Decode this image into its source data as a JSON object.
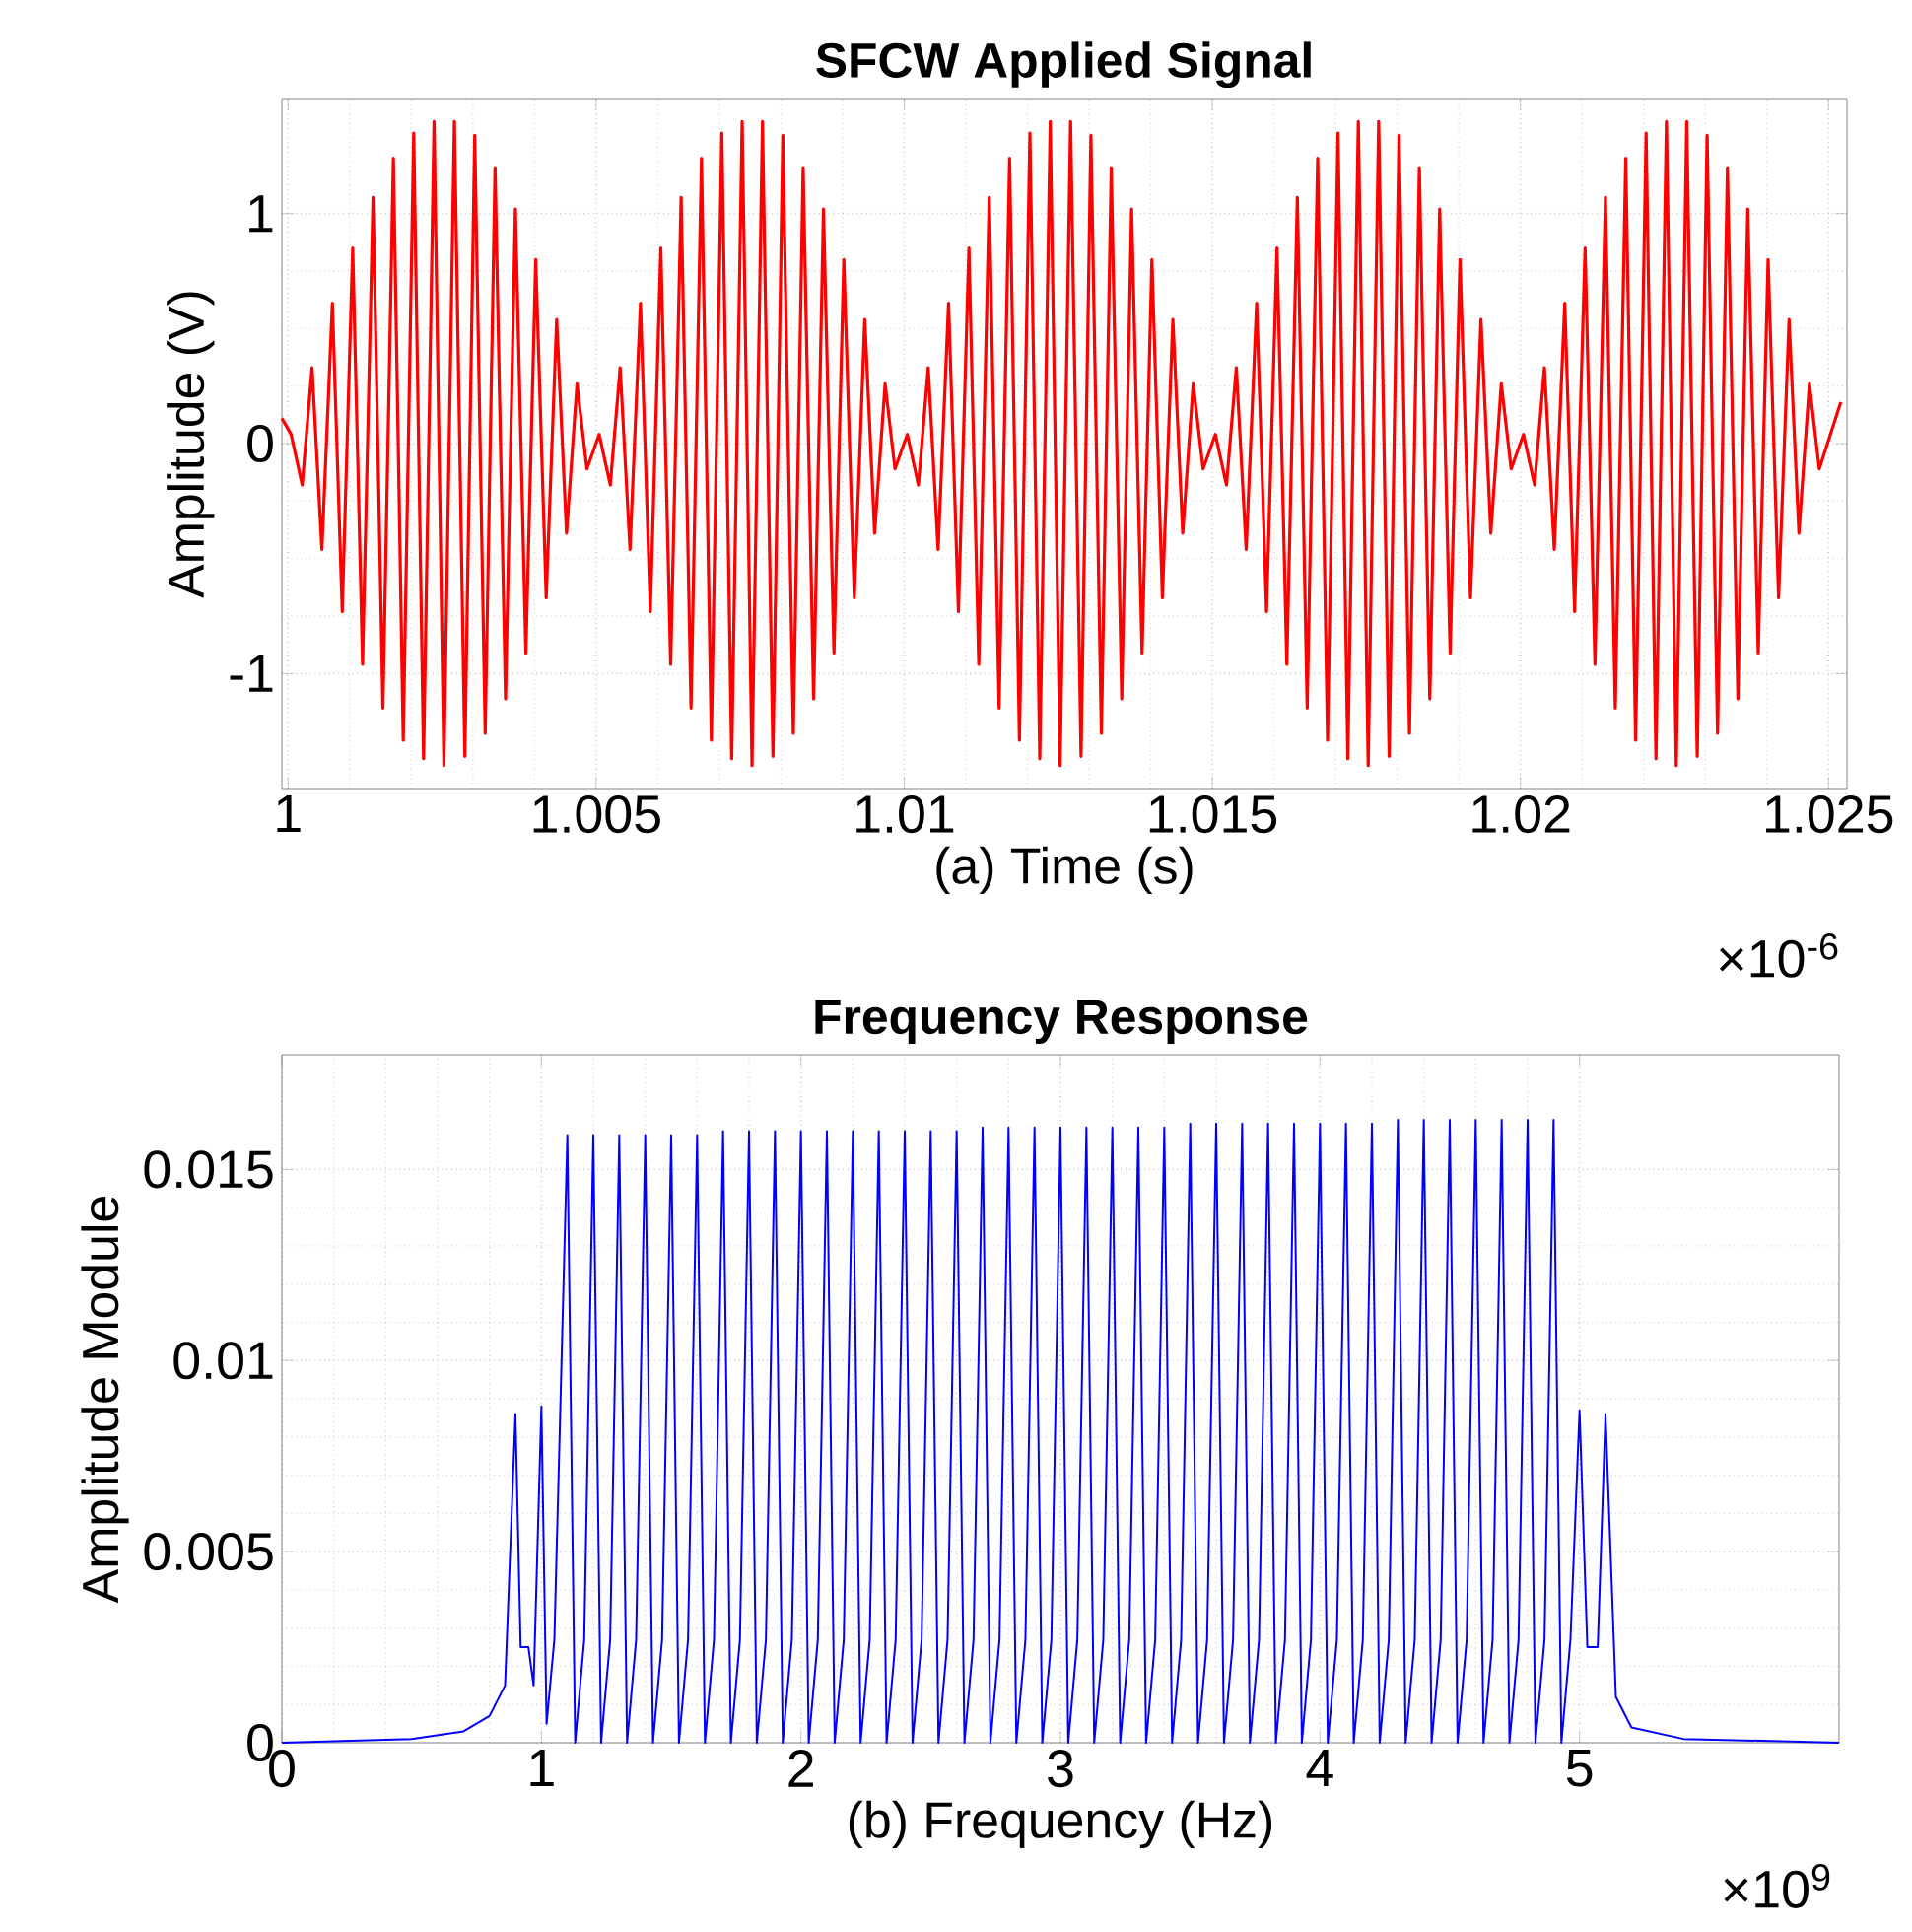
{
  "chart_data": [
    {
      "type": "line",
      "title": "SFCW Applied Signal",
      "xlabel": "(a) Time (s)",
      "ylabel": "Amplitude (V)",
      "annotations": [
        "×10$^{-6}$"
      ],
      "xlim": [
        0.9999,
        1.0253
      ],
      "ylim": [
        -1.5,
        1.5
      ],
      "xticks": [
        1,
        1.005,
        1.01,
        1.015,
        1.02,
        1.025
      ],
      "yticks": [
        -1,
        0,
        1
      ],
      "grid": true,
      "series": [
        {
          "color": "#ff0000",
          "x": [
            0.9999,
            1.00005,
            1.00023,
            1.00039,
            1.00055,
            1.00072,
            1.00088,
            1.00105,
            1.00121,
            1.00138,
            1.00154,
            1.00171,
            1.00187,
            1.00204,
            1.0022,
            1.00237,
            1.00253,
            1.0027,
            1.00287,
            1.00303,
            1.0032,
            1.00336,
            1.00353,
            1.00369,
            1.00386,
            1.00402,
            1.00419,
            1.00436,
            1.00452,
            1.00469,
            1.00485,
            1.00505,
            1.00523,
            1.00539,
            1.00555,
            1.00572,
            1.00588,
            1.00605,
            1.00621,
            1.00638,
            1.00654,
            1.00671,
            1.00687,
            1.00704,
            1.0072,
            1.00737,
            1.00753,
            1.0077,
            1.00787,
            1.00803,
            1.0082,
            1.00836,
            1.00853,
            1.00869,
            1.00886,
            1.00902,
            1.00919,
            1.00936,
            1.00952,
            1.00969,
            1.00985,
            1.01005,
            1.01023,
            1.01039,
            1.01055,
            1.01072,
            1.01088,
            1.01105,
            1.01121,
            1.01138,
            1.01154,
            1.01171,
            1.01187,
            1.01204,
            1.0122,
            1.01237,
            1.01253,
            1.0127,
            1.01287,
            1.01303,
            1.0132,
            1.01336,
            1.01353,
            1.01369,
            1.01386,
            1.01402,
            1.01419,
            1.01436,
            1.01452,
            1.01469,
            1.01485,
            1.01505,
            1.01523,
            1.01539,
            1.01555,
            1.01572,
            1.01588,
            1.01605,
            1.01621,
            1.01638,
            1.01654,
            1.01671,
            1.01687,
            1.01704,
            1.0172,
            1.01737,
            1.01753,
            1.0177,
            1.01787,
            1.01803,
            1.0182,
            1.01836,
            1.01853,
            1.01869,
            1.01886,
            1.01902,
            1.01919,
            1.01936,
            1.01952,
            1.01969,
            1.01985,
            1.02005,
            1.02023,
            1.02039,
            1.02055,
            1.02072,
            1.02088,
            1.02105,
            1.02121,
            1.02138,
            1.02154,
            1.02171,
            1.02187,
            1.02204,
            1.0222,
            1.02237,
            1.02253,
            1.0227,
            1.02287,
            1.02303,
            1.0232,
            1.02336,
            1.02353,
            1.02369,
            1.02386,
            1.02402,
            1.02419,
            1.02436,
            1.02452,
            1.02469,
            1.02485,
            1.0252
          ],
          "values": [
            0.11,
            0.04,
            -0.18,
            0.33,
            -0.46,
            0.61,
            -0.73,
            0.85,
            -0.96,
            1.07,
            -1.15,
            1.24,
            -1.29,
            1.35,
            -1.37,
            1.4,
            -1.4,
            1.4,
            -1.36,
            1.34,
            -1.26,
            1.2,
            -1.11,
            1.02,
            -0.91,
            0.8,
            -0.67,
            0.54,
            -0.39,
            0.26,
            -0.11,
            0.04,
            -0.18,
            0.33,
            -0.46,
            0.61,
            -0.73,
            0.85,
            -0.96,
            1.07,
            -1.15,
            1.24,
            -1.29,
            1.35,
            -1.37,
            1.4,
            -1.4,
            1.4,
            -1.36,
            1.34,
            -1.26,
            1.2,
            -1.11,
            1.02,
            -0.91,
            0.8,
            -0.67,
            0.54,
            -0.39,
            0.26,
            -0.11,
            0.04,
            -0.18,
            0.33,
            -0.46,
            0.61,
            -0.73,
            0.85,
            -0.96,
            1.07,
            -1.15,
            1.24,
            -1.29,
            1.35,
            -1.37,
            1.4,
            -1.4,
            1.4,
            -1.36,
            1.34,
            -1.26,
            1.2,
            -1.11,
            1.02,
            -0.91,
            0.8,
            -0.67,
            0.54,
            -0.39,
            0.26,
            -0.11,
            0.04,
            -0.18,
            0.33,
            -0.46,
            0.61,
            -0.73,
            0.85,
            -0.96,
            1.07,
            -1.15,
            1.24,
            -1.29,
            1.35,
            -1.37,
            1.4,
            -1.4,
            1.4,
            -1.36,
            1.34,
            -1.26,
            1.2,
            -1.11,
            1.02,
            -0.91,
            0.8,
            -0.67,
            0.54,
            -0.39,
            0.26,
            -0.11,
            0.04,
            -0.18,
            0.33,
            -0.46,
            0.61,
            -0.73,
            0.85,
            -0.96,
            1.07,
            -1.15,
            1.24,
            -1.29,
            1.35,
            -1.37,
            1.4,
            -1.4,
            1.4,
            -1.36,
            1.34,
            -1.26,
            1.2,
            -1.11,
            1.02,
            -0.91,
            0.8,
            -0.67,
            0.54,
            -0.39,
            0.26,
            -0.11,
            0.18
          ]
        }
      ]
    },
    {
      "type": "line",
      "title": "Frequency Response",
      "xlabel": "(b)   Frequency (Hz)",
      "ylabel": "Amplitude Module",
      "annotations": [
        "×10$^{9}$"
      ],
      "xlim": [
        0,
        6
      ],
      "ylim": [
        0,
        0.018
      ],
      "xticks": [
        0,
        1,
        2,
        3,
        4,
        5
      ],
      "yticks": [
        0,
        0.005,
        0.01,
        0.015
      ],
      "grid": true,
      "series": [
        {
          "color": "#0000ff",
          "x": [
            0,
            0.5,
            0.7,
            0.8,
            0.86,
            0.9,
            0.92,
            0.95,
            0.97,
            1.0,
            1.02,
            1.05,
            1.1,
            1.13,
            1.165,
            1.2,
            1.23,
            1.265,
            1.3,
            1.33,
            1.365,
            1.4,
            1.43,
            1.465,
            1.5,
            1.53,
            1.565,
            1.6,
            1.63,
            1.665,
            1.7,
            1.73,
            1.765,
            1.8,
            1.83,
            1.865,
            1.9,
            1.93,
            1.965,
            2.0,
            2.03,
            2.065,
            2.1,
            2.13,
            2.165,
            2.2,
            2.23,
            2.265,
            2.3,
            2.33,
            2.365,
            2.4,
            2.43,
            2.465,
            2.5,
            2.53,
            2.565,
            2.6,
            2.63,
            2.665,
            2.7,
            2.73,
            2.765,
            2.8,
            2.83,
            2.865,
            2.9,
            2.93,
            2.965,
            3.0,
            3.03,
            3.065,
            3.1,
            3.13,
            3.165,
            3.2,
            3.23,
            3.265,
            3.3,
            3.33,
            3.365,
            3.4,
            3.43,
            3.465,
            3.5,
            3.53,
            3.565,
            3.6,
            3.63,
            3.665,
            3.7,
            3.73,
            3.765,
            3.8,
            3.83,
            3.865,
            3.9,
            3.93,
            3.965,
            4.0,
            4.03,
            4.065,
            4.1,
            4.13,
            4.165,
            4.2,
            4.23,
            4.265,
            4.3,
            4.33,
            4.365,
            4.4,
            4.43,
            4.465,
            4.5,
            4.53,
            4.565,
            4.6,
            4.63,
            4.665,
            4.7,
            4.73,
            4.765,
            4.8,
            4.83,
            4.865,
            4.9,
            4.93,
            4.965,
            5.0,
            5.03,
            5.07,
            5.1,
            5.14,
            5.2,
            5.4,
            6.0
          ],
          "values": [
            0,
            0.0001,
            0.0003,
            0.0007,
            0.0015,
            0.0086,
            0.0025,
            0.0025,
            0.0015,
            0.0088,
            0.0005,
            0.0027,
            0.0159,
            0,
            0.0027,
            0.0159,
            0,
            0.0027,
            0.0159,
            0,
            0.0027,
            0.0159,
            0,
            0.0027,
            0.0159,
            0,
            0.0027,
            0.0159,
            0,
            0.0027,
            0.016,
            0,
            0.0027,
            0.016,
            0,
            0.0027,
            0.016,
            0,
            0.0027,
            0.016,
            0,
            0.0027,
            0.016,
            0,
            0.0027,
            0.016,
            0,
            0.0027,
            0.016,
            0,
            0.0027,
            0.016,
            0,
            0.0027,
            0.016,
            0,
            0.0027,
            0.016,
            0,
            0.0027,
            0.0161,
            0,
            0.0027,
            0.0161,
            0,
            0.0027,
            0.0161,
            0,
            0.0027,
            0.0161,
            0,
            0.0027,
            0.0161,
            0,
            0.0027,
            0.0161,
            0,
            0.0027,
            0.0161,
            0,
            0.0027,
            0.0161,
            0,
            0.0027,
            0.0162,
            0,
            0.0027,
            0.0162,
            0,
            0.0027,
            0.0162,
            0,
            0.0027,
            0.0162,
            0,
            0.0027,
            0.0162,
            0,
            0.0027,
            0.0162,
            0,
            0.0027,
            0.0162,
            0,
            0.0027,
            0.0162,
            0,
            0.0027,
            0.0163,
            0,
            0.0027,
            0.0163,
            0,
            0.0027,
            0.0163,
            0,
            0.0027,
            0.0163,
            0,
            0.0027,
            0.0163,
            0,
            0.0027,
            0.0163,
            0,
            0.0027,
            0.0163,
            0,
            0.0027,
            0.0087,
            0.0025,
            0.0025,
            0.0086,
            0.0012,
            0.0004,
            0.0001,
            0
          ]
        }
      ]
    }
  ]
}
